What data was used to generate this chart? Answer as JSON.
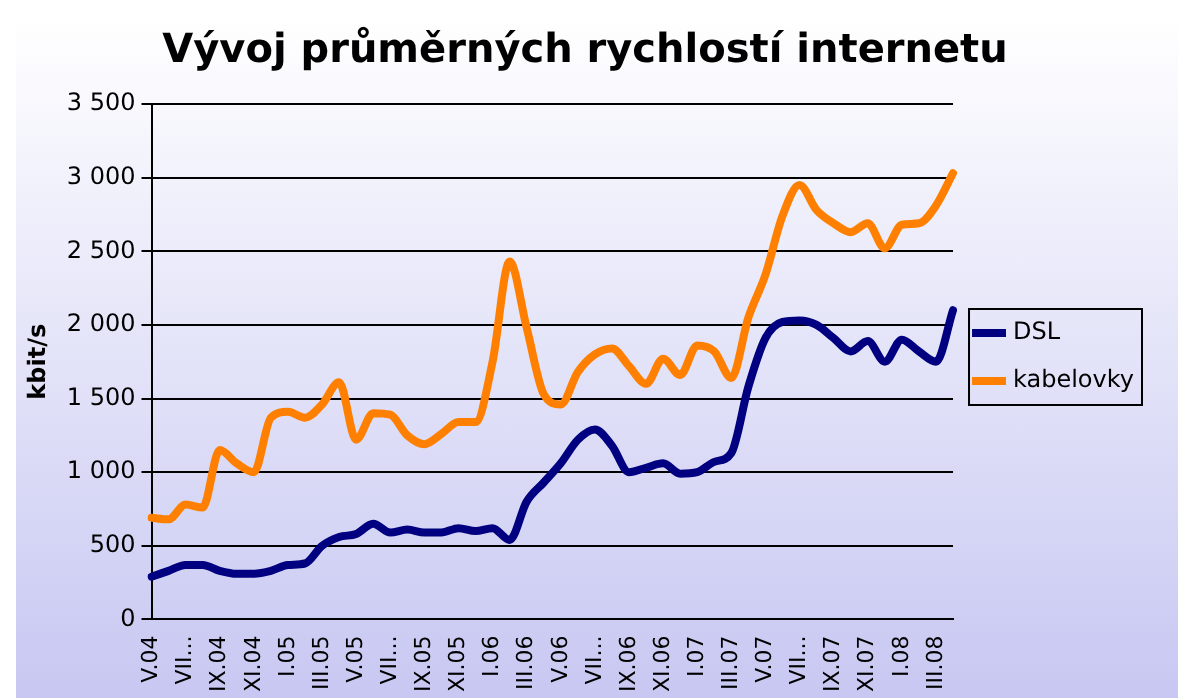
{
  "chart_data": {
    "type": "line",
    "title": "Vývoj průměrných rychlostí internetu",
    "ylabel": "kbit/s",
    "categories": [
      "V.04",
      null,
      "VII...",
      null,
      "IX.04",
      null,
      "XI.04",
      null,
      "I.05",
      null,
      "III.05",
      null,
      "V.05",
      null,
      "VII...",
      null,
      "IX.05",
      null,
      "XI.05",
      null,
      "I.06",
      null,
      "III.06",
      null,
      "V.06",
      null,
      "VII...",
      null,
      "IX.06",
      null,
      "XI.06",
      null,
      "I.07",
      null,
      "III.07",
      null,
      "V.07",
      null,
      "VII...",
      null,
      "IX.07",
      null,
      "XI.07",
      null,
      "I.08",
      null,
      "III.08",
      null
    ],
    "series": [
      {
        "name": "DSL",
        "color": "#000080",
        "values": [
          290,
          330,
          370,
          370,
          330,
          310,
          310,
          330,
          370,
          380,
          500,
          560,
          580,
          650,
          590,
          610,
          590,
          590,
          620,
          600,
          620,
          540,
          800,
          930,
          1060,
          1220,
          1290,
          1180,
          1000,
          1030,
          1060,
          990,
          1000,
          1070,
          1130,
          1580,
          1910,
          2020,
          2030,
          2000,
          1910,
          1820,
          1890,
          1750,
          1900,
          1820,
          1750,
          2100
        ]
      },
      {
        "name": "kabelovky",
        "color": "#ff8000",
        "values": [
          690,
          680,
          780,
          760,
          1150,
          1060,
          1000,
          1370,
          1410,
          1370,
          1460,
          1610,
          1220,
          1400,
          1390,
          1250,
          1190,
          1260,
          1340,
          1340,
          1750,
          2430,
          1980,
          1530,
          1460,
          1680,
          1800,
          1840,
          1720,
          1600,
          1770,
          1660,
          1860,
          1820,
          1640,
          2050,
          2340,
          2740,
          2950,
          2780,
          2690,
          2630,
          2690,
          2520,
          2680,
          2690,
          2810,
          3030
        ]
      }
    ],
    "ylim": [
      0,
      3500
    ],
    "yticks": [
      {
        "value": 0,
        "label": "0"
      },
      {
        "value": 500,
        "label": "500"
      },
      {
        "value": 1000,
        "label": "1 000"
      },
      {
        "value": 1500,
        "label": "1 500"
      },
      {
        "value": 2000,
        "label": "2 000"
      },
      {
        "value": 2500,
        "label": "2 500"
      },
      {
        "value": 3000,
        "label": "3 000"
      },
      {
        "value": 3500,
        "label": "3 500"
      }
    ],
    "grid": "y",
    "legend": "right",
    "marker": "none",
    "line_style": "solid"
  }
}
